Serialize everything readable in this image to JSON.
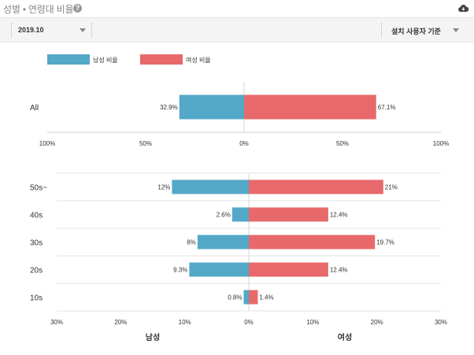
{
  "header": {
    "title": "성별 • 연령대 비율",
    "help_icon": "question-circle-icon",
    "download_icon": "cloud-download-icon"
  },
  "toolbar": {
    "date_value": "2019.10",
    "basis_value": "설치 사용자 기준"
  },
  "colors": {
    "male": "#54a8c8",
    "female": "#e8696b"
  },
  "chart_data": [
    {
      "type": "bar",
      "orientation": "horizontal-diverging",
      "legend": [
        {
          "name": "남성 비율",
          "color": "#54a8c8"
        },
        {
          "name": "여성 비율",
          "color": "#e8696b"
        }
      ],
      "legend_placement": "top-left",
      "categories": [
        "All"
      ],
      "series": [
        {
          "name": "남성 비율",
          "values": [
            32.9
          ],
          "labels": [
            "32.9%"
          ]
        },
        {
          "name": "여성 비율",
          "values": [
            67.1
          ],
          "labels": [
            "67.1%"
          ]
        }
      ],
      "xlim": [
        -100,
        100
      ],
      "ticks": [
        -100,
        -50,
        0,
        50,
        100
      ],
      "tick_labels": [
        "100%",
        "50%",
        "0%",
        "50%",
        "100%"
      ]
    },
    {
      "type": "bar",
      "orientation": "horizontal-diverging",
      "categories": [
        "50s~",
        "40s",
        "30s",
        "20s",
        "10s"
      ],
      "series": [
        {
          "name": "남성",
          "values": [
            12,
            2.6,
            8,
            9.3,
            0.8
          ],
          "labels": [
            "12%",
            "2.6%",
            "8%",
            "9.3%",
            "0.8%"
          ]
        },
        {
          "name": "여성",
          "values": [
            21,
            12.4,
            19.7,
            12.4,
            1.4
          ],
          "labels": [
            "21%",
            "12.4%",
            "19.7%",
            "12.4%",
            "1.4%"
          ]
        }
      ],
      "xlim": [
        -30,
        30
      ],
      "ticks": [
        -30,
        -20,
        -10,
        0,
        10,
        20,
        30
      ],
      "tick_labels": [
        "30%",
        "20%",
        "10%",
        "0%",
        "10%",
        "20%",
        "30%"
      ],
      "side_labels": [
        "남성",
        "여성"
      ],
      "grid": true
    }
  ]
}
